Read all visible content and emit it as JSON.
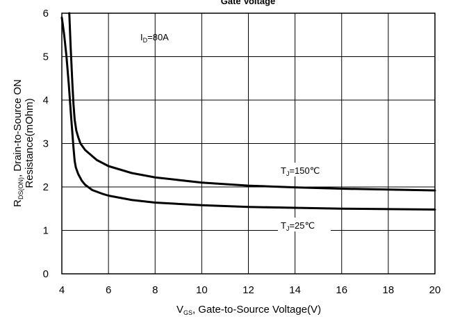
{
  "chart_data": {
    "type": "line",
    "title": "Gate Voltage",
    "xlabel": {
      "main": "V",
      "sub": "GS",
      "rest": ", Gate-to-Source  Voltage(V)"
    },
    "ylabel": {
      "line1_main": "R",
      "line1_sub": "DS(ON)",
      "line1_rest": ",  Drain-to-Source  ON",
      "line2": "Resistance(mOhm)"
    },
    "xlim": [
      4,
      20
    ],
    "ylim": [
      0,
      6
    ],
    "xticks": [
      "4",
      "6",
      "8",
      "10",
      "12",
      "14",
      "16",
      "18",
      "20"
    ],
    "yticks": [
      "0",
      "1",
      "2",
      "3",
      "4",
      "5",
      "6"
    ],
    "grid": true,
    "annotations": [
      {
        "main": "I",
        "sub": "D",
        "rest": "=80A"
      },
      {
        "main": "T",
        "sub": "J",
        "rest": "=150℃"
      },
      {
        "main": "T",
        "sub": "J",
        "rest": "=25℃"
      }
    ],
    "series": [
      {
        "label": "T_J=150℃",
        "x": [
          4.32,
          4.38,
          4.45,
          4.5,
          4.55,
          4.62,
          4.7,
          4.8,
          5.0,
          5.5,
          6.0,
          7.0,
          8.0,
          10.0,
          12.0,
          14.0,
          16.0,
          18.0,
          20.0
        ],
        "y": [
          6.0,
          5.2,
          4.4,
          3.9,
          3.55,
          3.3,
          3.15,
          3.0,
          2.85,
          2.62,
          2.48,
          2.32,
          2.22,
          2.1,
          2.03,
          1.99,
          1.96,
          1.94,
          1.92
        ]
      },
      {
        "label": "T_J=25℃",
        "x": [
          4.0,
          4.1,
          4.2,
          4.3,
          4.4,
          4.5,
          4.55,
          4.6,
          4.7,
          4.85,
          5.0,
          5.3,
          5.7,
          6.0,
          7.0,
          8.0,
          10.0,
          12.0,
          14.0,
          16.0,
          18.0,
          20.0
        ],
        "y": [
          5.9,
          5.5,
          5.0,
          4.35,
          3.6,
          2.9,
          2.6,
          2.45,
          2.3,
          2.15,
          2.05,
          1.93,
          1.85,
          1.8,
          1.7,
          1.64,
          1.58,
          1.54,
          1.52,
          1.5,
          1.49,
          1.48
        ]
      }
    ]
  }
}
